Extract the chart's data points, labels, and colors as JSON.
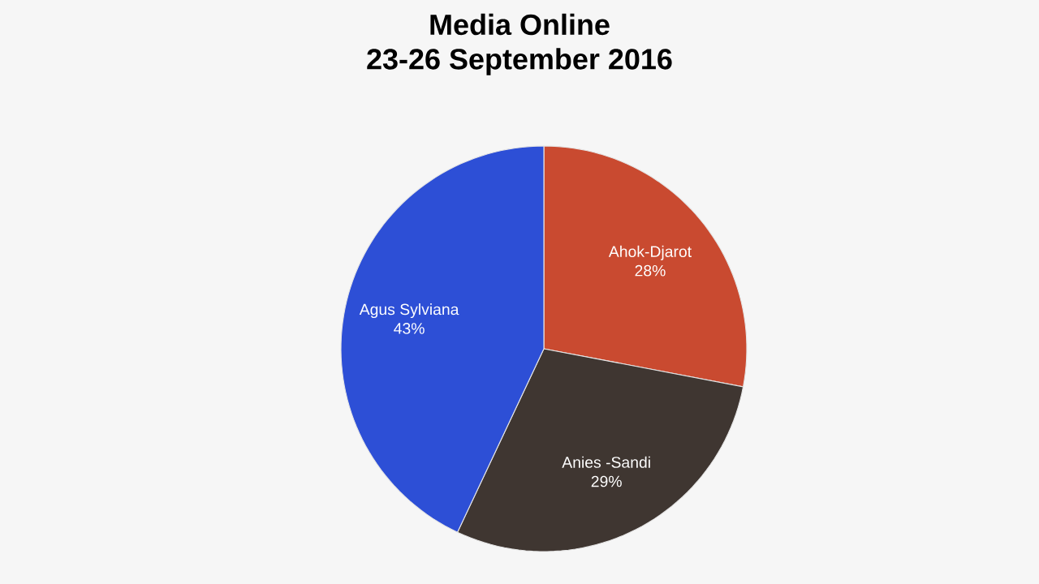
{
  "chart_data": {
    "type": "pie",
    "title": "Media Online",
    "subtitle": "23-26 September 2016",
    "categories": [
      "Ahok-Djarot",
      "Anies -Sandi",
      "Agus Sylviana"
    ],
    "values": [
      28,
      29,
      43
    ],
    "value_labels": [
      "28%",
      "29%",
      "43%"
    ],
    "colors": [
      "#c94a30",
      "#3f3631",
      "#2d4fd6"
    ]
  }
}
